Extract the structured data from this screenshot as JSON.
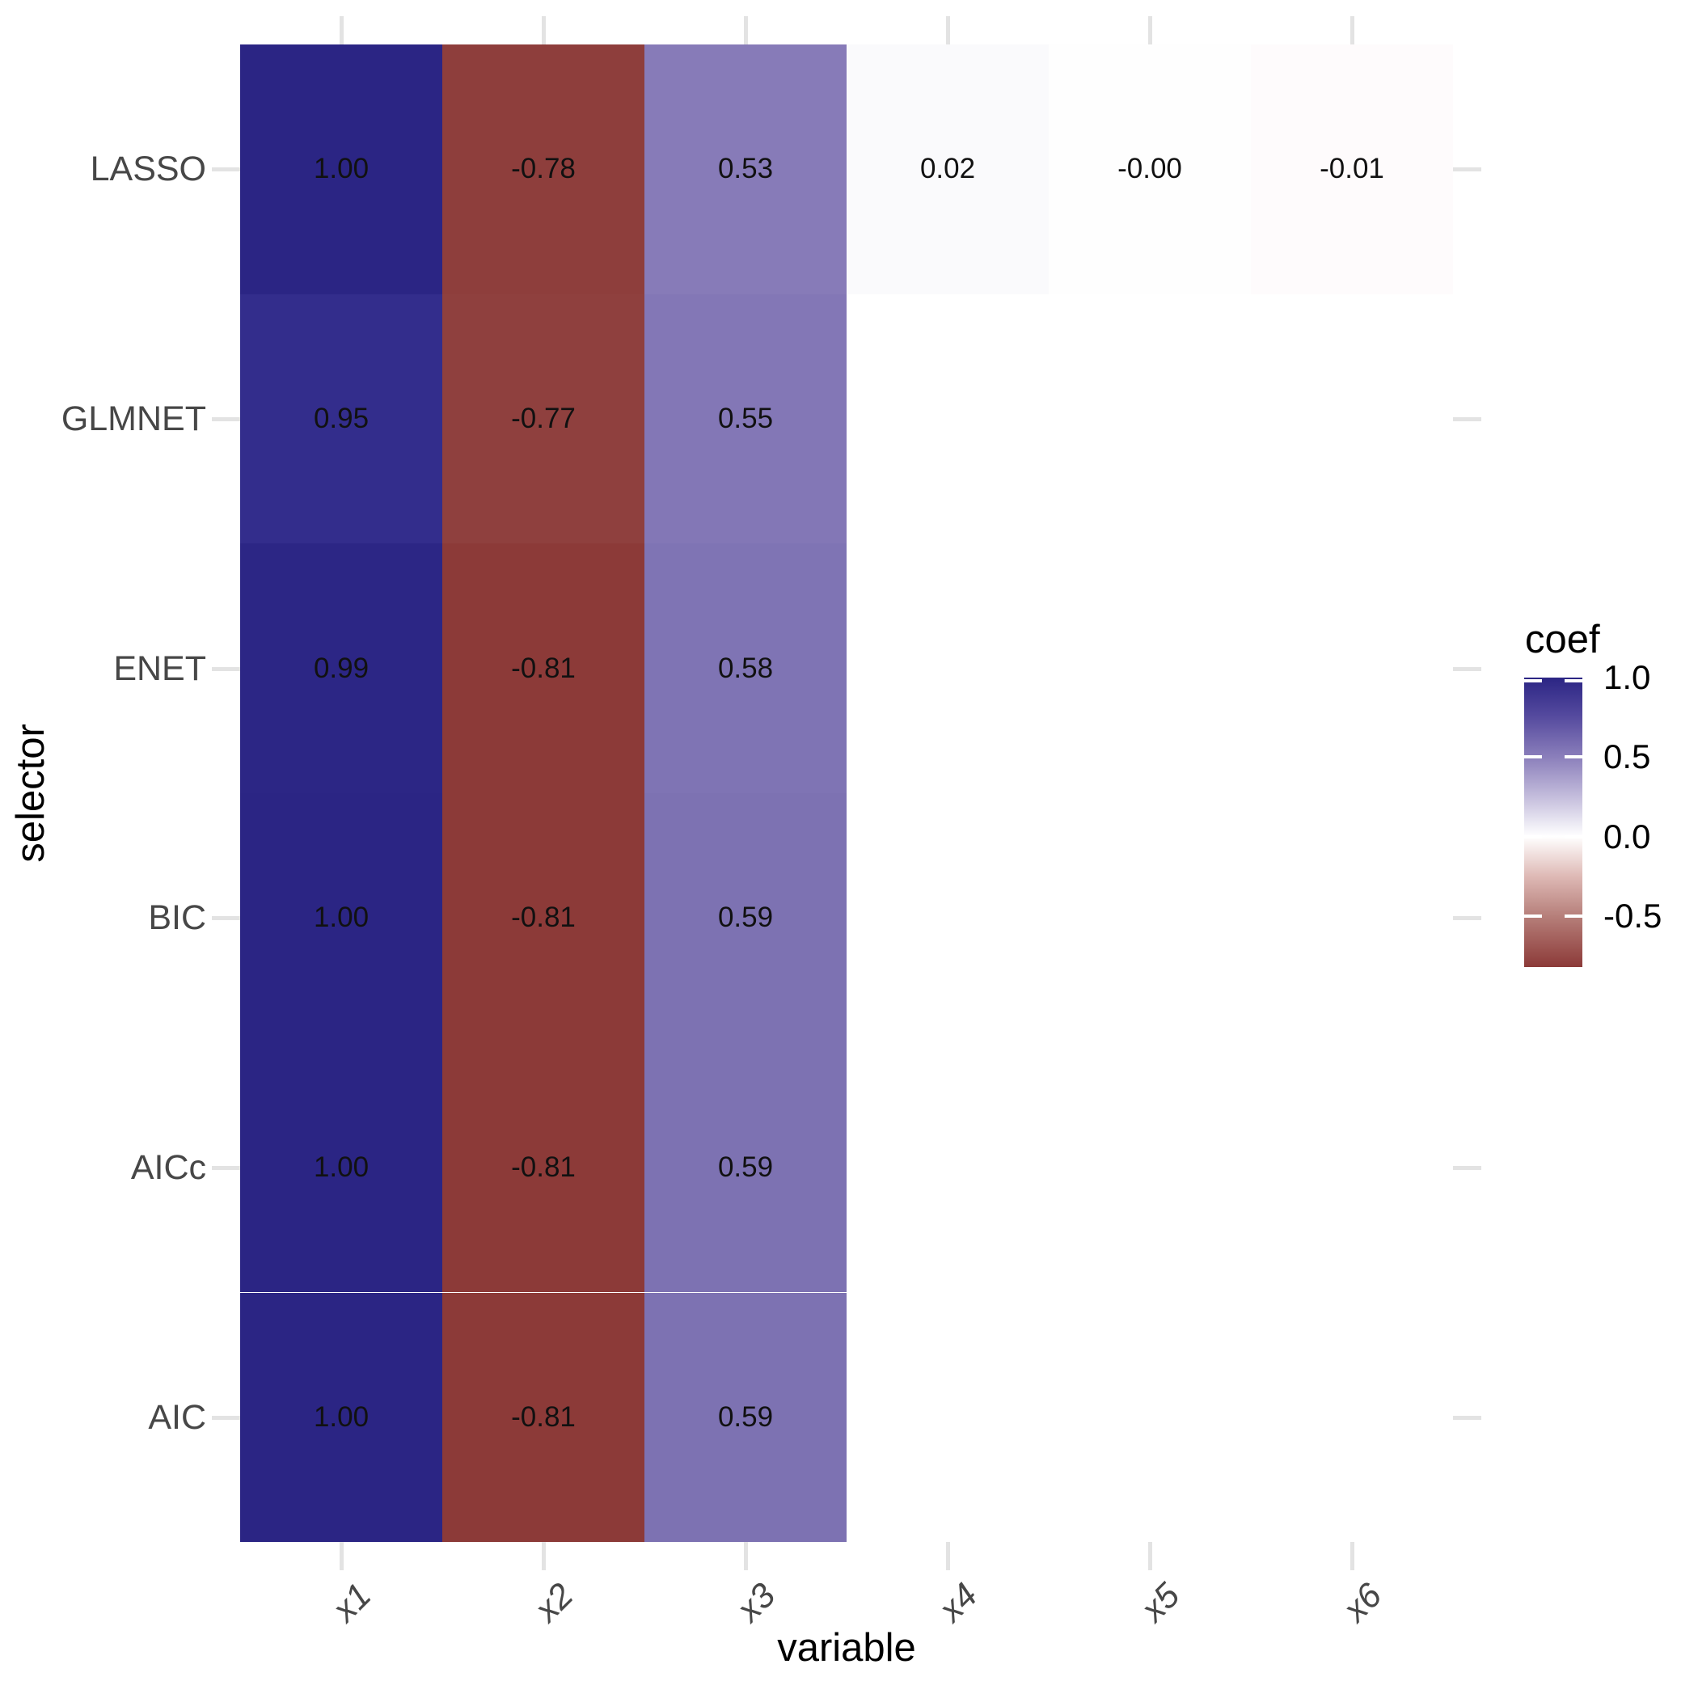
{
  "figure": {
    "background": "#ffffff"
  },
  "chart_data": {
    "type": "heatmap",
    "title": "",
    "xlabel": "variable",
    "ylabel": "selector",
    "x_categories": [
      "x1",
      "x2",
      "x3",
      "x4",
      "x5",
      "x6"
    ],
    "y_categories": [
      "LASSO",
      "GLMNET",
      "ENET",
      "BIC",
      "AICc",
      "AIC"
    ],
    "grid": false,
    "axis_text_color": "#474747",
    "axis_tick_color": "#e3e3e3",
    "cell_text_color": "#111111",
    "rows": [
      {
        "selector": "LASSO",
        "cells": [
          {
            "value": 1.0,
            "label": "1.00",
            "color": "#2b2584"
          },
          {
            "value": -0.78,
            "label": "-0.78",
            "color": "#8e3e3c"
          },
          {
            "value": 0.53,
            "label": "0.53",
            "color": "#877bb8"
          },
          {
            "value": 0.02,
            "label": "0.02",
            "color": "#fafafc"
          },
          {
            "value": -0.0,
            "label": "-0.00",
            "color": "#fefefe"
          },
          {
            "value": -0.01,
            "label": "-0.01",
            "color": "#fefbfc"
          }
        ]
      },
      {
        "selector": "GLMNET",
        "cells": [
          {
            "value": 0.95,
            "label": "0.95",
            "color": "#332d8c"
          },
          {
            "value": -0.77,
            "label": "-0.77",
            "color": "#8f403e"
          },
          {
            "value": 0.55,
            "label": "0.55",
            "color": "#8377b6"
          },
          null,
          null,
          null
        ]
      },
      {
        "selector": "ENET",
        "cells": [
          {
            "value": 0.99,
            "label": "0.99",
            "color": "#2c2685"
          },
          {
            "value": -0.81,
            "label": "-0.81",
            "color": "#8c3a38"
          },
          {
            "value": 0.58,
            "label": "0.58",
            "color": "#7f74b4"
          },
          null,
          null,
          null
        ]
      },
      {
        "selector": "BIC",
        "cells": [
          {
            "value": 1.0,
            "label": "1.00",
            "color": "#2b2584"
          },
          {
            "value": -0.81,
            "label": "-0.81",
            "color": "#8c3a38"
          },
          {
            "value": 0.59,
            "label": "0.59",
            "color": "#7d72b2"
          },
          null,
          null,
          null
        ]
      },
      {
        "selector": "AICc",
        "cells": [
          {
            "value": 1.0,
            "label": "1.00",
            "color": "#2b2584"
          },
          {
            "value": -0.81,
            "label": "-0.81",
            "color": "#8c3a38"
          },
          {
            "value": 0.59,
            "label": "0.59",
            "color": "#7d72b2"
          },
          null,
          null,
          null
        ]
      },
      {
        "selector": "AIC",
        "cells": [
          {
            "value": 1.0,
            "label": "1.00",
            "color": "#2b2584"
          },
          {
            "value": -0.81,
            "label": "-0.81",
            "color": "#8c3a38"
          },
          {
            "value": 0.59,
            "label": "0.59",
            "color": "#7d72b2"
          },
          null,
          null,
          null
        ]
      }
    ],
    "legend": {
      "title": "coef",
      "position": "right",
      "tick_labels": [
        "1.0",
        "0.5",
        "0.0",
        "-0.5"
      ],
      "tick_values": [
        1.0,
        0.5,
        0.0,
        -0.5
      ],
      "domain": [
        -0.82,
        1.0
      ],
      "gradient_stops": [
        {
          "pos": 0,
          "color": "#2b2584"
        },
        {
          "pos": 13.7,
          "color": "#564b9f"
        },
        {
          "pos": 27.5,
          "color": "#8b7fbb"
        },
        {
          "pos": 41.2,
          "color": "#c4bddc"
        },
        {
          "pos": 54.9,
          "color": "#ffffff"
        },
        {
          "pos": 68.7,
          "color": "#deb9b5"
        },
        {
          "pos": 82.4,
          "color": "#b67f7a"
        },
        {
          "pos": 100,
          "color": "#8c3a38"
        }
      ]
    }
  }
}
